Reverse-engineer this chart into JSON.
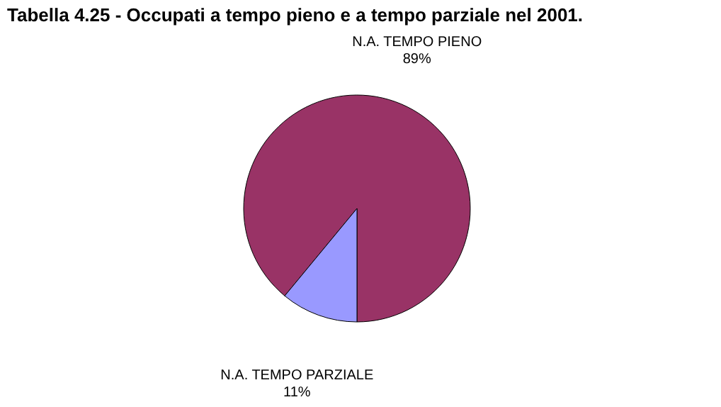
{
  "chart_data": {
    "type": "pie",
    "title": "Tabella 4.25 - Occupati a tempo pieno e a tempo parziale nel 2001.",
    "categories": [
      "N.A. TEMPO PIENO",
      "N.A. TEMPO PARZIALE"
    ],
    "values": [
      89,
      11
    ],
    "colors": [
      "#993366",
      "#9999ff"
    ],
    "value_labels": [
      "89%",
      "11%"
    ],
    "legend": false
  }
}
